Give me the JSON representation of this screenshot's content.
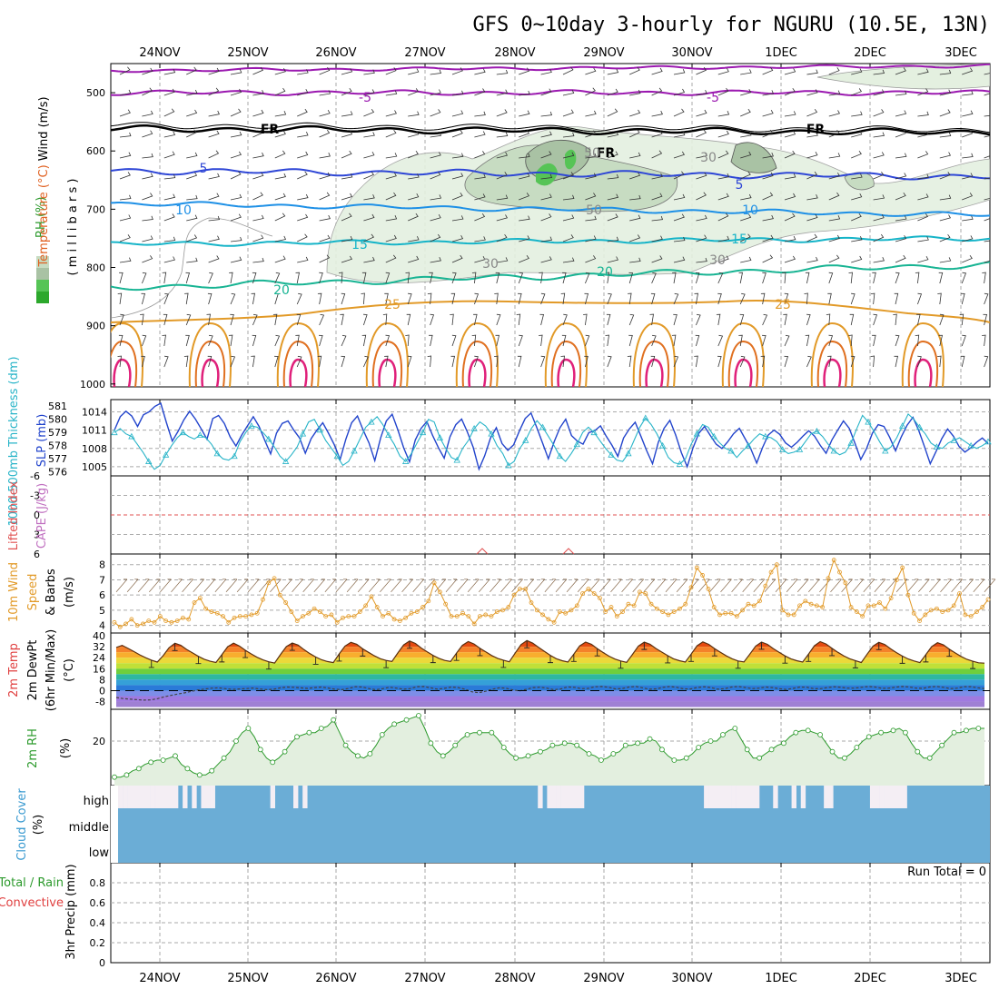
{
  "title": "GFS 0~10day 3-hourly for NGURU (10.5E, 13N)",
  "dates": [
    "24NOV",
    "25NOV",
    "26NOV",
    "27NOV",
    "28NOV",
    "29NOV",
    "30NOV",
    "1DEC",
    "2DEC",
    "3DEC"
  ],
  "colors": {
    "purple": "#9b19b0",
    "black": "#000000",
    "blue": "#2e46d6",
    "lightblue": "#1e90e6",
    "teal": "#16b4c8",
    "green": "#18b493",
    "orange": "#e29a28",
    "darkorange": "#e07020",
    "magenta": "#e0207a",
    "cyan": "#28b4c8",
    "rhgreen": "#2c9a2c",
    "cloud": "#6badd6",
    "cloudhigh": "#f4eef4"
  },
  "panels": {
    "upper": {
      "ylabel_rh": "RH (%)",
      "ylabel_temp": "Temperature (°C)",
      "ylabel_wind": "Wind (m/s)",
      "ylabel_pres": "( m i l l i b a r s )",
      "yticks": [
        "500",
        "600",
        "700",
        "800",
        "900",
        "1000"
      ],
      "contour_labels": [
        {
          "text": "-5",
          "series": "purple"
        },
        {
          "text": "-5",
          "series": "purple"
        },
        {
          "text": "FR",
          "series": "black"
        },
        {
          "text": "FR",
          "series": "black"
        },
        {
          "text": "FR",
          "series": "black"
        },
        {
          "text": "5",
          "series": "blue"
        },
        {
          "text": "5",
          "series": "blue"
        },
        {
          "text": "10",
          "series": "lightblue"
        },
        {
          "text": "10",
          "series": "lightblue"
        },
        {
          "text": "15",
          "series": "teal"
        },
        {
          "text": "15",
          "series": "teal"
        },
        {
          "text": "20",
          "series": "green"
        },
        {
          "text": "20",
          "series": "green"
        },
        {
          "text": "25",
          "series": "orange"
        },
        {
          "text": "25",
          "series": "orange"
        },
        {
          "text": "30",
          "series": "rh"
        },
        {
          "text": "30",
          "series": "rh"
        },
        {
          "text": "30",
          "series": "rh"
        },
        {
          "text": "50",
          "series": "rh"
        },
        {
          "text": "50",
          "series": "rh"
        }
      ]
    },
    "slp": {
      "ylabel_thick": "1000-500mb Thickness (dm)",
      "ylabel_slp": "SLP (mb)",
      "yticks_thick": [
        "581",
        "580",
        "579",
        "578",
        "577",
        "576"
      ],
      "yticks_slp": [
        "1014",
        "1011",
        "1008",
        "1005"
      ],
      "slp_values": [
        1011.0,
        1013.2,
        1014.1,
        1013.3,
        1011.6,
        1013.5,
        1014.0,
        1014.9,
        1015.4,
        1012.2,
        1009.2,
        1010.8,
        1012.7,
        1014.1,
        1012.8,
        1011.2,
        1009.5,
        1012.9,
        1013.4,
        1012.1,
        1009.9,
        1008.4,
        1010.2,
        1011.7,
        1013.2,
        1011.6,
        1009.3,
        1007.1,
        1010.5,
        1012.1,
        1012.5,
        1011.0,
        1009.7,
        1007.2,
        1009.6,
        1011.0,
        1012.2,
        1010.5,
        1008.6,
        1006.2,
        1009.5,
        1012.2,
        1013.3,
        1011.0,
        1008.9,
        1006.0,
        1009.7,
        1012.5,
        1013.6,
        1011.0,
        1008.1,
        1005.8,
        1009.4,
        1011.3,
        1012.4,
        1010.1,
        1008.1,
        1006.4,
        1009.9,
        1011.9,
        1012.8,
        1010.7,
        1008.2,
        1004.6,
        1006.8,
        1009.7,
        1011.4,
        1008.8,
        1007.7,
        1008.6,
        1010.9,
        1012.9,
        1013.8,
        1011.4,
        1008.9,
        1006.3,
        1009.1,
        1011.4,
        1012.8,
        1010.1,
        1009.2,
        1008.7,
        1010.6,
        1010.9,
        1011.7,
        1010.0,
        1008.5,
        1006.7,
        1009.7,
        1011.2,
        1012.3,
        1010.0,
        1007.6,
        1005.5,
        1009.0,
        1011.3,
        1012.6,
        1010.2,
        1007.3,
        1005.0,
        1008.1,
        1010.5,
        1011.6,
        1010.1,
        1008.7,
        1008.0,
        1009.1,
        1010.4,
        1011.3,
        1009.6,
        1007.9,
        1005.6,
        1008.1,
        1010.2,
        1011.0,
        1010.3,
        1008.9,
        1008.2,
        1009.0,
        1010.0,
        1010.9,
        1010.0,
        1008.5,
        1007.2,
        1009.4,
        1011.0,
        1012.5,
        1011.3,
        1008.8,
        1006.2,
        1008.0,
        1010.5,
        1011.9,
        1011.6,
        1009.8,
        1007.6,
        1009.9,
        1011.8,
        1013.1,
        1011.0,
        1008.3,
        1005.5,
        1007.5,
        1009.6,
        1011.2,
        1010.0,
        1008.3,
        1007.4,
        1008.1,
        1009.0,
        1009.7,
        1008.8
      ],
      "thick_values": [
        579.0,
        579.3,
        578.9,
        578.7,
        578.1,
        577.5,
        576.8,
        576.2,
        576.5,
        577.3,
        578.0,
        578.6,
        579.0,
        578.7,
        578.5,
        578.8,
        578.6,
        578.1,
        577.4,
        577.0,
        576.9,
        577.2,
        578.3,
        579.0,
        579.5,
        579.4,
        579.0,
        578.5,
        577.9,
        577.2,
        576.8,
        577.3,
        577.9,
        578.9,
        579.8,
        580.0,
        579.2,
        578.4,
        577.8,
        577.2,
        576.5,
        576.8,
        577.6,
        578.5,
        579.4,
        579.8,
        580.2,
        579.6,
        578.8,
        578.1,
        577.2,
        576.8,
        577.4,
        578.2,
        579.0,
        580.0,
        579.8,
        578.6,
        577.8,
        577.1,
        576.9,
        577.8,
        578.4,
        579.3,
        579.8,
        579.5,
        578.9,
        578.0,
        577.4,
        576.5,
        576.8,
        577.8,
        578.4,
        579.3,
        579.9,
        579.4,
        578.7,
        578.0,
        577.2,
        576.8,
        577.4,
        578.1,
        579.0,
        579.4,
        579.0,
        578.4,
        577.8,
        577.3,
        576.9,
        576.8,
        577.4,
        578.4,
        579.4,
        580.1,
        579.6,
        578.9,
        578.0,
        577.1,
        576.7,
        576.6,
        577.0,
        578.1,
        578.9,
        579.6,
        579.4,
        578.7,
        578.2,
        577.8,
        577.6,
        577.1,
        577.6,
        578.0,
        578.5,
        578.9,
        578.7,
        578.6,
        578.3,
        577.7,
        577.4,
        577.5,
        577.7,
        578.3,
        578.9,
        579.1,
        578.7,
        578.1,
        577.6,
        577.3,
        577.5,
        578.2,
        579.3,
        580.3,
        579.8,
        579.1,
        578.3,
        577.6,
        577.9,
        578.6,
        579.5,
        580.4,
        580.0,
        579.4,
        578.9,
        578.2,
        577.9,
        577.8,
        578.2,
        578.4,
        578.6,
        578.3,
        578.0,
        577.8,
        578.0,
        578.3
      ],
      "slp_color": "#2244cc",
      "thick_color": "#28b4c8"
    },
    "cape": {
      "ylabel_li": "Lifted Index",
      "ylabel_cape": "CAPE (J/kg)",
      "yticks": [
        "6",
        "3",
        "0",
        "-3",
        "-6"
      ]
    },
    "wind10": {
      "ylabel_a": "10m Wind",
      "ylabel_b": "Speed",
      "ylabel_c": "& Barbs",
      "ylabel_unit": "(m/s)",
      "yticks": [
        "8",
        "7",
        "6",
        "5",
        "4"
      ],
      "values": [
        4.2,
        3.9,
        4.1,
        4.4,
        4.0,
        4.1,
        4.3,
        4.2,
        4.6,
        4.3,
        4.2,
        4.3,
        4.5,
        4.4,
        5.5,
        5.8,
        5.1,
        4.9,
        4.8,
        4.6,
        4.2,
        4.5,
        4.6,
        4.6,
        4.7,
        4.8,
        5.7,
        6.8,
        7.1,
        6.0,
        5.5,
        4.9,
        4.3,
        4.6,
        4.8,
        5.1,
        4.9,
        4.6,
        4.7,
        4.2,
        4.5,
        4.6,
        4.6,
        4.9,
        5.3,
        5.9,
        5.2,
        4.6,
        4.8,
        4.4,
        4.3,
        4.5,
        4.8,
        4.9,
        5.2,
        5.6,
        6.8,
        6.2,
        5.4,
        4.6,
        4.6,
        4.8,
        4.6,
        4.1,
        4.6,
        4.7,
        4.6,
        4.9,
        5.0,
        5.2,
        6.0,
        6.4,
        6.4,
        5.5,
        5.0,
        4.7,
        4.4,
        4.2,
        4.9,
        4.8,
        5.0,
        5.3,
        6.1,
        6.4,
        6.1,
        5.8,
        4.9,
        5.2,
        4.6,
        4.9,
        5.4,
        5.3,
        6.2,
        6.1,
        5.4,
        5.1,
        4.9,
        4.7,
        4.9,
        5.1,
        5.4,
        6.5,
        7.8,
        7.3,
        6.4,
        5.2,
        4.7,
        4.8,
        4.8,
        4.6,
        5.0,
        5.4,
        5.3,
        5.6,
        6.6,
        7.5,
        8.0,
        5.0,
        4.7,
        4.7,
        5.3,
        5.6,
        5.4,
        5.3,
        5.2,
        7.1,
        8.3,
        7.5,
        6.8,
        5.2,
        4.9,
        4.6,
        5.3,
        5.3,
        5.5,
        5.1,
        5.8,
        7.0,
        7.8,
        6.0,
        4.8,
        4.3,
        4.7,
        5.0,
        5.1,
        4.9,
        5.0,
        5.3,
        6.1,
        4.7,
        4.6,
        4.9,
        5.2,
        5.7
      ],
      "color": "#e29a28"
    },
    "temp": {
      "ylabel_a": "2m Temp",
      "ylabel_b": "2m DewPt",
      "ylabel_c": "(6hr Min/Max)",
      "ylabel_unit": "(°C)",
      "yticks": [
        "40",
        "32",
        "24",
        "16",
        "8",
        "0",
        "-8"
      ],
      "temp_values": [
        31.5,
        33.0,
        30.8,
        28.5,
        26.1,
        24.0,
        22.2,
        20.8,
        25.5,
        31.2,
        34.5,
        33.0,
        30.0,
        27.5,
        25.0,
        22.9,
        21.4,
        20.5,
        26.2,
        32.0,
        34.6,
        32.5,
        29.4,
        26.8,
        24.3,
        22.4,
        21.0,
        20.1,
        26.4,
        32.1,
        34.7,
        33.2,
        29.9,
        27.0,
        24.5,
        22.5,
        21.2,
        20.4,
        26.8,
        32.5,
        35.2,
        33.8,
        30.5,
        27.9,
        25.4,
        23.3,
        22.0,
        21.2,
        27.5,
        33.3,
        36.2,
        34.4,
        31.0,
        28.3,
        25.7,
        23.5,
        22.0,
        21.2,
        27.3,
        33.0,
        35.8,
        34.0,
        30.8,
        28.2,
        25.6,
        23.5,
        22.2,
        21.0,
        27.3,
        33.5,
        36.5,
        34.6,
        31.5,
        28.6,
        25.7,
        23.3,
        21.8,
        20.8,
        26.6,
        32.6,
        35.4,
        33.8,
        30.6,
        27.8,
        25.1,
        23.0,
        21.6,
        20.6,
        26.4,
        32.5,
        35.3,
        33.8,
        30.7,
        28.1,
        25.5,
        23.2,
        21.8,
        20.8,
        26.6,
        32.7,
        35.5,
        33.7,
        30.6,
        27.9,
        25.3,
        23.2,
        21.6,
        20.9,
        26.6,
        32.5,
        35.4,
        33.7,
        30.6,
        27.9,
        25.3,
        23.2,
        21.8,
        20.8,
        26.6,
        32.7,
        35.7,
        34.0,
        30.8,
        28.0,
        25.4,
        23.3,
        21.9,
        20.5,
        26.6,
        32.4,
        35.2,
        33.6,
        30.5,
        27.7,
        25.2,
        23.1,
        21.6,
        20.4,
        26.2,
        32.1,
        34.9,
        33.4,
        30.3,
        27.5,
        24.9,
        22.8,
        21.4,
        20.3,
        20.0
      ],
      "dew_values": [
        -5.0,
        -5.8,
        -6.2,
        -6.6,
        -6.9,
        -6.8,
        -5.9,
        -4.5,
        -3.5,
        -2.5,
        -1.6,
        -0.5,
        0.5,
        1.2,
        1.8,
        2.0,
        1.4,
        0.9,
        1.2,
        1.5,
        1.9,
        1.2,
        0.7,
        1.0,
        2.0,
        2.6,
        2.4,
        2.0,
        1.6,
        2.2,
        2.6,
        1.9,
        1.0,
        0.7,
        1.6,
        2.9,
        2.6,
        1.5,
        0.6,
        1.5,
        2.5,
        1.8,
        1.0,
        1.5,
        2.9,
        3.0,
        2.0,
        1.1,
        1.7,
        2.6,
        2.2,
        1.0,
        -0.8,
        -1.5,
        -0.5,
        1.0,
        2.0,
        1.8,
        0.5,
        -0.2,
        1.0,
        2.2,
        2.5,
        1.8,
        0.6,
        1.2,
        2.7,
        2.4,
        1.5,
        1.6,
        2.8,
        3.0,
        2.5,
        1.3,
        1.5,
        2.6,
        3.0,
        2.1,
        1.0,
        1.3,
        2.4,
        3.0,
        2.4,
        1.3,
        1.2,
        2.3,
        2.8,
        2.2,
        1.0,
        1.5,
        2.6,
        3.0,
        2.3,
        1.5,
        1.8,
        2.6,
        2.2,
        1.4,
        0.8,
        1.6,
        2.6,
        2.5,
        1.5,
        1.4,
        2.2,
        2.8,
        2.4,
        1.8,
        1.8,
        2.4,
        3.0,
        2.6,
        1.7,
        1.8,
        2.5,
        3.0,
        2.7,
        1.8,
        1.7,
        2.7,
        3.0,
        2.4,
        1.5,
        1.8,
        2.9,
        2.9,
        2.1,
        1.5
      ]
    },
    "rh": {
      "ylabel": "2m RH",
      "ylabel_unit": "(%)",
      "yticks": [
        "20"
      ],
      "values": [
        3,
        3,
        4,
        6,
        7,
        9,
        10,
        11,
        11,
        12,
        13,
        9,
        7,
        5,
        4,
        4,
        6,
        9,
        12,
        15,
        20,
        24,
        26,
        22,
        16,
        12,
        10,
        12,
        15,
        19,
        22,
        23,
        24,
        24,
        26,
        27,
        30,
        24,
        18,
        15,
        13,
        12,
        14,
        18,
        23,
        26,
        28,
        29,
        30,
        31,
        32,
        26,
        19,
        15,
        13,
        15,
        18,
        21,
        23,
        24,
        24,
        24,
        24,
        21,
        17,
        14,
        12,
        12,
        13,
        14,
        15,
        16,
        18,
        18,
        19,
        19,
        18,
        16,
        14,
        13,
        11,
        12,
        14,
        15,
        18,
        18,
        19,
        19,
        21,
        20,
        16,
        13,
        11,
        11,
        12,
        14,
        17,
        19,
        20,
        20,
        23,
        25,
        26,
        21,
        16,
        12,
        12,
        14,
        16,
        18,
        19,
        22,
        24,
        25,
        25,
        24,
        23,
        19,
        15,
        12,
        12,
        14,
        17,
        20,
        22,
        23,
        24,
        24,
        25,
        26,
        24,
        19,
        15,
        12,
        12,
        15,
        18,
        21,
        24,
        24,
        25,
        26,
        26,
        26
      ]
    },
    "cloud": {
      "ylabel_a": "Cloud Cover",
      "ylabel_unit": "(%)",
      "levels": [
        "high",
        "middle",
        "low"
      ],
      "high_cover": [
        0,
        0,
        0,
        0,
        0,
        0,
        0,
        0,
        0,
        0,
        0,
        0,
        0,
        1,
        0,
        1,
        0,
        1,
        0,
        0,
        0,
        1,
        1,
        1,
        1,
        1,
        1,
        1,
        1,
        1,
        1,
        1,
        1,
        0,
        1,
        1,
        1,
        1,
        0,
        1,
        0,
        1,
        1,
        1,
        1,
        1,
        1,
        1,
        1,
        1,
        1,
        1,
        1,
        1,
        1,
        1,
        1,
        1,
        1,
        1,
        1,
        1,
        1,
        1,
        1,
        1,
        1,
        1,
        1,
        1,
        1,
        1,
        1,
        1,
        1,
        1,
        1,
        1,
        1,
        1,
        1,
        1,
        1,
        1,
        1,
        1,
        1,
        1,
        1,
        1,
        1,
        0,
        1,
        0,
        0,
        0,
        0,
        0,
        0,
        0,
        0,
        1,
        1,
        1,
        1,
        1,
        1,
        1,
        1,
        1,
        1,
        1,
        1,
        1,
        1,
        1,
        1,
        1,
        1,
        1,
        1,
        1,
        1,
        1,
        1,
        1,
        1,
        0,
        0,
        0,
        0,
        0,
        0,
        0,
        0,
        0,
        0,
        0,
        0,
        1,
        1,
        1,
        0,
        1,
        1,
        1,
        0,
        1,
        0,
        1,
        1,
        1,
        1,
        0,
        0,
        1,
        1,
        1,
        1,
        1,
        1,
        1,
        1,
        0,
        0,
        0,
        0,
        0,
        0,
        0,
        0,
        1,
        1,
        1,
        1,
        1,
        1,
        1,
        1,
        1,
        1,
        1,
        1,
        1,
        1,
        1,
        1,
        1,
        1
      ]
    },
    "precip": {
      "ylabel_a": "Total / Rain",
      "ylabel_b": "Convective",
      "ylabel_precip": "3hr Precip (mm)",
      "yticks": [
        "0.8",
        "0.6",
        "0.4",
        "0.2",
        "0"
      ],
      "run_total": "Run Total = 0"
    }
  },
  "chart_data": [
    {
      "type": "line",
      "title": "GFS 0~10day 3-hourly for NGURU (10.5E, 13N)",
      "x_axis": [
        "24NOV",
        "25NOV",
        "26NOV",
        "27NOV",
        "28NOV",
        "29NOV",
        "30NOV",
        "1DEC",
        "2DEC",
        "3DEC"
      ],
      "ylabel": "SLP (mb)",
      "ylim": [
        1004,
        1016
      ],
      "series": [
        {
          "name": "SLP (mb)"
        },
        {
          "name": "1000-500mb Thickness (dm)"
        }
      ]
    },
    {
      "type": "line",
      "ylabel": "10m Wind Speed & Barbs (m/s)",
      "ylim": [
        3.5,
        8.5
      ]
    },
    {
      "type": "area",
      "ylabel": "2m Temp / 2m DewPt (°C)",
      "ylim": [
        -12,
        40
      ]
    },
    {
      "type": "area",
      "ylabel": "2m RH (%)",
      "ylim": [
        0,
        35
      ]
    },
    {
      "type": "bar",
      "ylabel": "3hr Precip (mm)",
      "ylim": [
        0,
        1.0
      ],
      "values": [],
      "run_total": "Run Total = 0"
    }
  ]
}
